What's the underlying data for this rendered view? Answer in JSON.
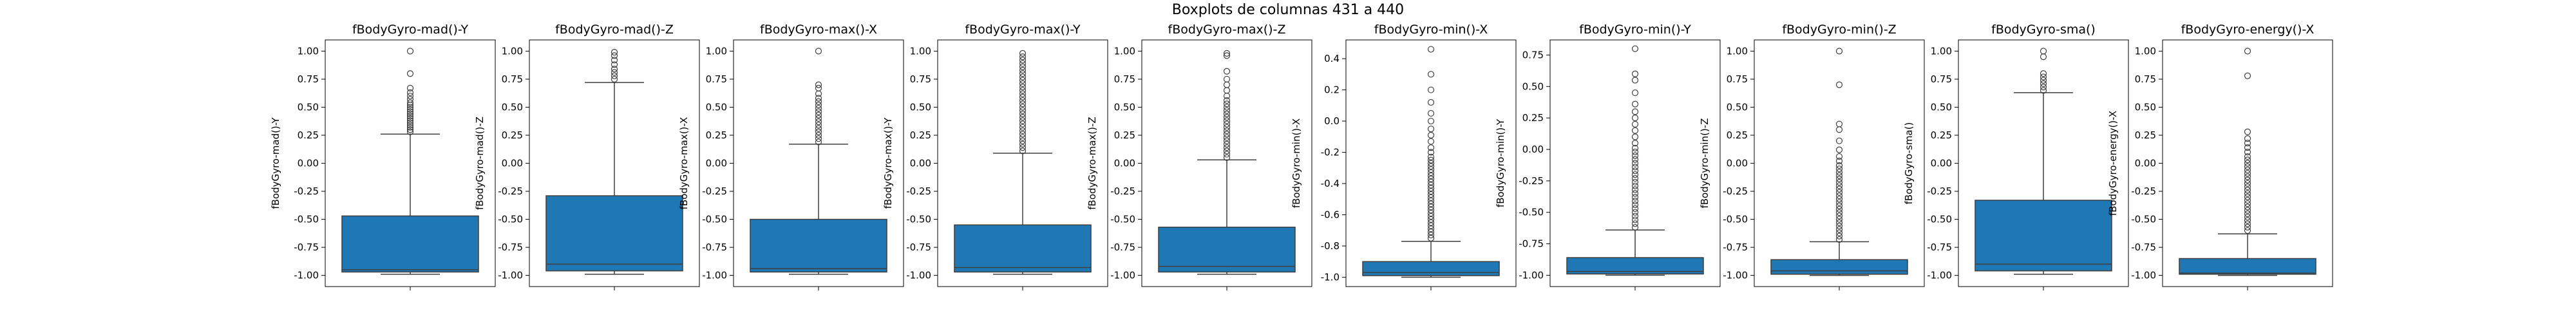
{
  "figure": {
    "suptitle": "Boxplots de columnas 431 a 440"
  },
  "colors": {
    "box_fill": "#1f77b4",
    "line": "#3f3f3f",
    "frame": "#000000",
    "background": "#ffffff"
  },
  "chart_data": [
    {
      "type": "box",
      "title": "fBodyGyro-mad()-Y",
      "ylabel": "fBodyGyro-mad()-Y",
      "ylim": [
        -1.1,
        1.1
      ],
      "yticks": [
        "-1.00",
        "-0.75",
        "-0.50",
        "-0.25",
        "0.00",
        "0.25",
        "0.50",
        "0.75",
        "1.00"
      ],
      "whisker_low": -0.99,
      "q1": -0.97,
      "median": -0.95,
      "q3": -0.47,
      "whisker_high": 0.26,
      "outliers": [
        0.28,
        0.3,
        0.32,
        0.34,
        0.36,
        0.38,
        0.4,
        0.42,
        0.44,
        0.46,
        0.48,
        0.5,
        0.52,
        0.54,
        0.57,
        0.6,
        0.63,
        0.67,
        0.8,
        1.0
      ]
    },
    {
      "type": "box",
      "title": "fBodyGyro-mad()-Z",
      "ylabel": "fBodyGyro-mad()-Z",
      "ylim": [
        -1.1,
        1.1
      ],
      "yticks": [
        "-1.00",
        "-0.75",
        "-0.50",
        "-0.25",
        "0.00",
        "0.25",
        "0.50",
        "0.75",
        "1.00"
      ],
      "whisker_low": -0.99,
      "q1": -0.96,
      "median": -0.9,
      "q3": -0.29,
      "whisker_high": 0.72,
      "outliers": [
        0.75,
        0.78,
        0.81,
        0.84,
        0.88,
        0.92,
        0.96,
        0.99
      ]
    },
    {
      "type": "box",
      "title": "fBodyGyro-max()-X",
      "ylabel": "fBodyGyro-max()-X",
      "ylim": [
        -1.1,
        1.1
      ],
      "yticks": [
        "-1.00",
        "-0.75",
        "-0.50",
        "-0.25",
        "0.00",
        "0.25",
        "0.50",
        "0.75",
        "1.00"
      ],
      "whisker_low": -0.99,
      "q1": -0.97,
      "median": -0.94,
      "q3": -0.5,
      "whisker_high": 0.17,
      "outliers": [
        0.19,
        0.22,
        0.25,
        0.28,
        0.31,
        0.34,
        0.37,
        0.4,
        0.43,
        0.46,
        0.49,
        0.52,
        0.55,
        0.58,
        0.62,
        0.67,
        0.7,
        1.0
      ]
    },
    {
      "type": "box",
      "title": "fBodyGyro-max()-Y",
      "ylabel": "fBodyGyro-max()-Y",
      "ylim": [
        -1.1,
        1.1
      ],
      "yticks": [
        "-1.00",
        "-0.75",
        "-0.50",
        "-0.25",
        "0.00",
        "0.25",
        "0.50",
        "0.75",
        "1.00"
      ],
      "whisker_low": -0.99,
      "q1": -0.97,
      "median": -0.93,
      "q3": -0.55,
      "whisker_high": 0.09,
      "outliers": [
        0.11,
        0.14,
        0.17,
        0.2,
        0.23,
        0.26,
        0.29,
        0.32,
        0.35,
        0.38,
        0.41,
        0.44,
        0.47,
        0.5,
        0.53,
        0.56,
        0.59,
        0.62,
        0.65,
        0.68,
        0.71,
        0.74,
        0.77,
        0.8,
        0.83,
        0.86,
        0.89,
        0.92,
        0.95,
        0.98
      ]
    },
    {
      "type": "box",
      "title": "fBodyGyro-max()-Z",
      "ylabel": "fBodyGyro-max()-Z",
      "ylim": [
        -1.1,
        1.1
      ],
      "yticks": [
        "-1.00",
        "-0.75",
        "-0.50",
        "-0.25",
        "0.00",
        "0.25",
        "0.50",
        "0.75",
        "1.00"
      ],
      "whisker_low": -0.99,
      "q1": -0.97,
      "median": -0.92,
      "q3": -0.57,
      "whisker_high": 0.03,
      "outliers": [
        0.05,
        0.08,
        0.11,
        0.14,
        0.17,
        0.2,
        0.23,
        0.26,
        0.29,
        0.32,
        0.35,
        0.38,
        0.41,
        0.44,
        0.47,
        0.5,
        0.53,
        0.56,
        0.6,
        0.65,
        0.7,
        0.75,
        0.82,
        0.96,
        0.98
      ]
    },
    {
      "type": "box",
      "title": "fBodyGyro-min()-X",
      "ylabel": "fBodyGyro-min()-X",
      "ylim": [
        -1.06,
        0.52
      ],
      "yticks": [
        "-1.0",
        "-0.8",
        "-0.6",
        "-0.4",
        "-0.2",
        "0.0",
        "0.2",
        "0.4"
      ],
      "whisker_low": -1.0,
      "q1": -0.99,
      "median": -0.97,
      "q3": -0.9,
      "whisker_high": -0.77,
      "outliers": [
        -0.75,
        -0.73,
        -0.71,
        -0.69,
        -0.67,
        -0.65,
        -0.63,
        -0.61,
        -0.59,
        -0.57,
        -0.55,
        -0.53,
        -0.51,
        -0.49,
        -0.47,
        -0.45,
        -0.43,
        -0.41,
        -0.39,
        -0.37,
        -0.35,
        -0.33,
        -0.31,
        -0.29,
        -0.27,
        -0.25,
        -0.23,
        -0.2,
        -0.17,
        -0.13,
        -0.09,
        -0.05,
        0.0,
        0.05,
        0.12,
        0.2,
        0.3,
        0.46
      ]
    },
    {
      "type": "box",
      "title": "fBodyGyro-min()-Y",
      "ylabel": "fBodyGyro-min()-Y",
      "ylim": [
        -1.09,
        0.87
      ],
      "yticks": [
        "-1.00",
        "-0.75",
        "-0.50",
        "-0.25",
        "0.00",
        "0.25",
        "0.50",
        "0.75"
      ],
      "whisker_low": -1.0,
      "q1": -0.99,
      "median": -0.97,
      "q3": -0.86,
      "whisker_high": -0.64,
      "outliers": [
        -0.62,
        -0.59,
        -0.56,
        -0.53,
        -0.5,
        -0.47,
        -0.44,
        -0.41,
        -0.38,
        -0.35,
        -0.32,
        -0.29,
        -0.26,
        -0.23,
        -0.2,
        -0.17,
        -0.14,
        -0.11,
        -0.08,
        -0.05,
        -0.02,
        0.01,
        0.05,
        0.1,
        0.15,
        0.2,
        0.25,
        0.3,
        0.36,
        0.45,
        0.55,
        0.6,
        0.8
      ]
    },
    {
      "type": "box",
      "title": "fBodyGyro-min()-Z",
      "ylabel": "fBodyGyro-min()-Z",
      "ylim": [
        -1.1,
        1.1
      ],
      "yticks": [
        "-1.00",
        "-0.75",
        "-0.50",
        "-0.25",
        "0.00",
        "0.25",
        "0.50",
        "0.75",
        "1.00"
      ],
      "whisker_low": -1.0,
      "q1": -0.99,
      "median": -0.96,
      "q3": -0.86,
      "whisker_high": -0.7,
      "outliers": [
        -0.68,
        -0.65,
        -0.62,
        -0.59,
        -0.56,
        -0.53,
        -0.5,
        -0.47,
        -0.44,
        -0.41,
        -0.38,
        -0.35,
        -0.32,
        -0.29,
        -0.26,
        -0.23,
        -0.2,
        -0.17,
        -0.14,
        -0.11,
        -0.08,
        -0.05,
        -0.02,
        0.02,
        0.06,
        0.12,
        0.2,
        0.3,
        0.35,
        0.7,
        1.0
      ]
    },
    {
      "type": "box",
      "title": "fBodyGyro-sma()",
      "ylabel": "fBodyGyro-sma()",
      "ylim": [
        -1.1,
        1.1
      ],
      "yticks": [
        "-1.00",
        "-0.75",
        "-0.50",
        "-0.25",
        "0.00",
        "0.25",
        "0.50",
        "0.75",
        "1.00"
      ],
      "whisker_low": -0.99,
      "q1": -0.96,
      "median": -0.9,
      "q3": -0.33,
      "whisker_high": 0.63,
      "outliers": [
        0.65,
        0.68,
        0.71,
        0.74,
        0.77,
        0.8,
        0.95,
        1.0
      ]
    },
    {
      "type": "box",
      "title": "fBodyGyro-energy()-X",
      "ylabel": "fBodyGyro-energy()-X",
      "ylim": [
        -1.1,
        1.1
      ],
      "yticks": [
        "-1.00",
        "-0.75",
        "-0.50",
        "-0.25",
        "0.00",
        "0.25",
        "0.50",
        "0.75",
        "1.00"
      ],
      "whisker_low": -1.0,
      "q1": -0.99,
      "median": -0.98,
      "q3": -0.85,
      "whisker_high": -0.63,
      "outliers": [
        -0.6,
        -0.57,
        -0.54,
        -0.51,
        -0.48,
        -0.45,
        -0.42,
        -0.39,
        -0.36,
        -0.33,
        -0.3,
        -0.27,
        -0.24,
        -0.21,
        -0.18,
        -0.15,
        -0.12,
        -0.09,
        -0.06,
        -0.03,
        0.0,
        0.03,
        0.06,
        0.1,
        0.14,
        0.18,
        0.22,
        0.28,
        0.78,
        1.0
      ]
    }
  ]
}
